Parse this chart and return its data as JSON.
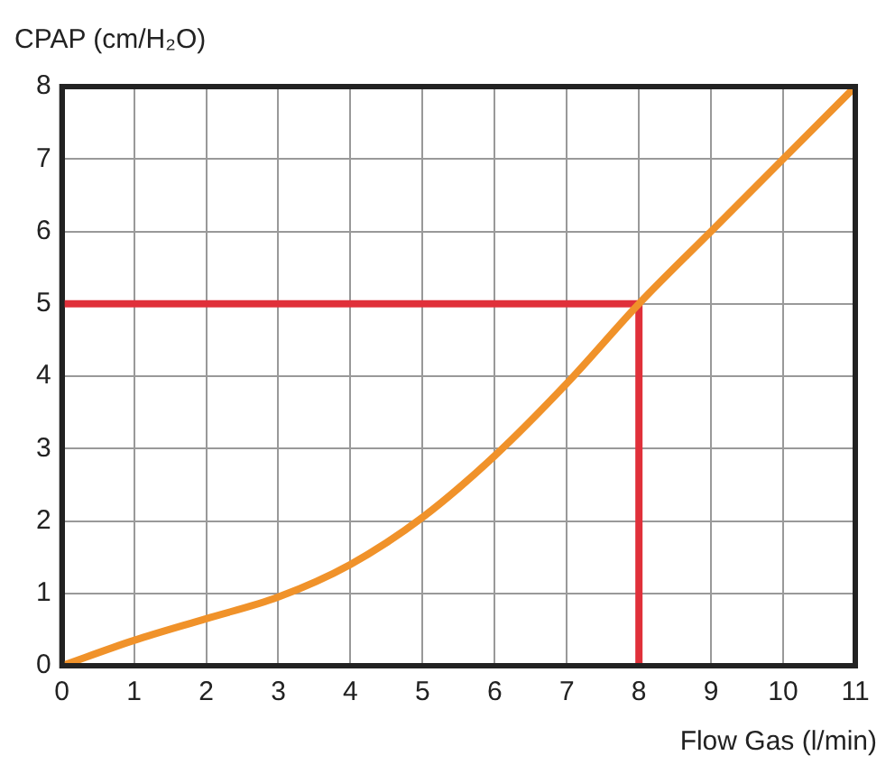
{
  "chart_data": {
    "type": "line",
    "xlabel": "Flow Gas (l/min)",
    "ylabel": "CPAP (cm/H₂O)",
    "xlim": [
      0,
      11
    ],
    "xticks": [
      0,
      1,
      2,
      3,
      4,
      5,
      6,
      7,
      8,
      9,
      10,
      11
    ],
    "ylim": [
      0,
      8
    ],
    "yticks": [
      0,
      1,
      2,
      3,
      4,
      5,
      6,
      7,
      8
    ],
    "grid": true,
    "legend": false,
    "marker": "none",
    "line_style": "solid",
    "series": [
      {
        "color": "#f0922a",
        "x": [
          0,
          1,
          2,
          3,
          4,
          5,
          6,
          7,
          8,
          9,
          10,
          11
        ],
        "values": [
          0,
          0.35,
          0.65,
          0.95,
          1.4,
          2.05,
          2.9,
          3.9,
          5,
          6,
          7,
          8
        ]
      },
      {
        "color": "#e0303a",
        "x": [
          0,
          8
        ],
        "values": [
          5,
          5
        ]
      },
      {
        "color": "#e0303a",
        "x": [
          8,
          8
        ],
        "values": [
          0,
          5
        ]
      }
    ]
  }
}
